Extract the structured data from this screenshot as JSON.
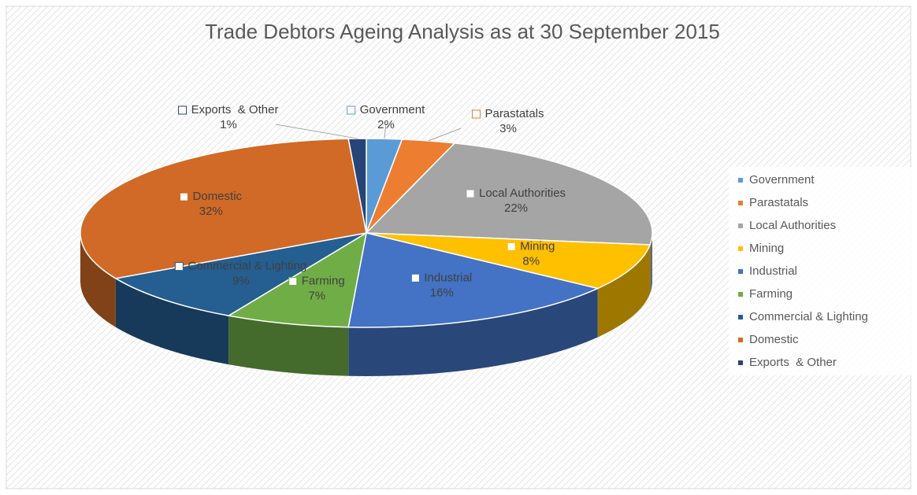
{
  "chart_data": {
    "type": "pie",
    "title": "Trade Debtors Ageing Analysis as at 30 September 2015",
    "categories": [
      "Government",
      "Parastatals",
      "Local Authorities",
      "Mining",
      "Industrial",
      "Farming",
      "Commercial & Lighting",
      "Domestic",
      "Exports  & Other"
    ],
    "values": [
      2,
      3,
      22,
      8,
      16,
      7,
      9,
      32,
      1
    ],
    "value_labels": [
      "2%",
      "3%",
      "22%",
      "8%",
      "16%",
      "7%",
      "9%",
      "32%",
      "1%"
    ],
    "colors": [
      "#5b9bd5",
      "#ed7d31",
      "#a5a5a5",
      "#ffc000",
      "#4472c4",
      "#70ad47",
      "#255e91",
      "#d06a26",
      "#264478"
    ],
    "legend": "right"
  }
}
